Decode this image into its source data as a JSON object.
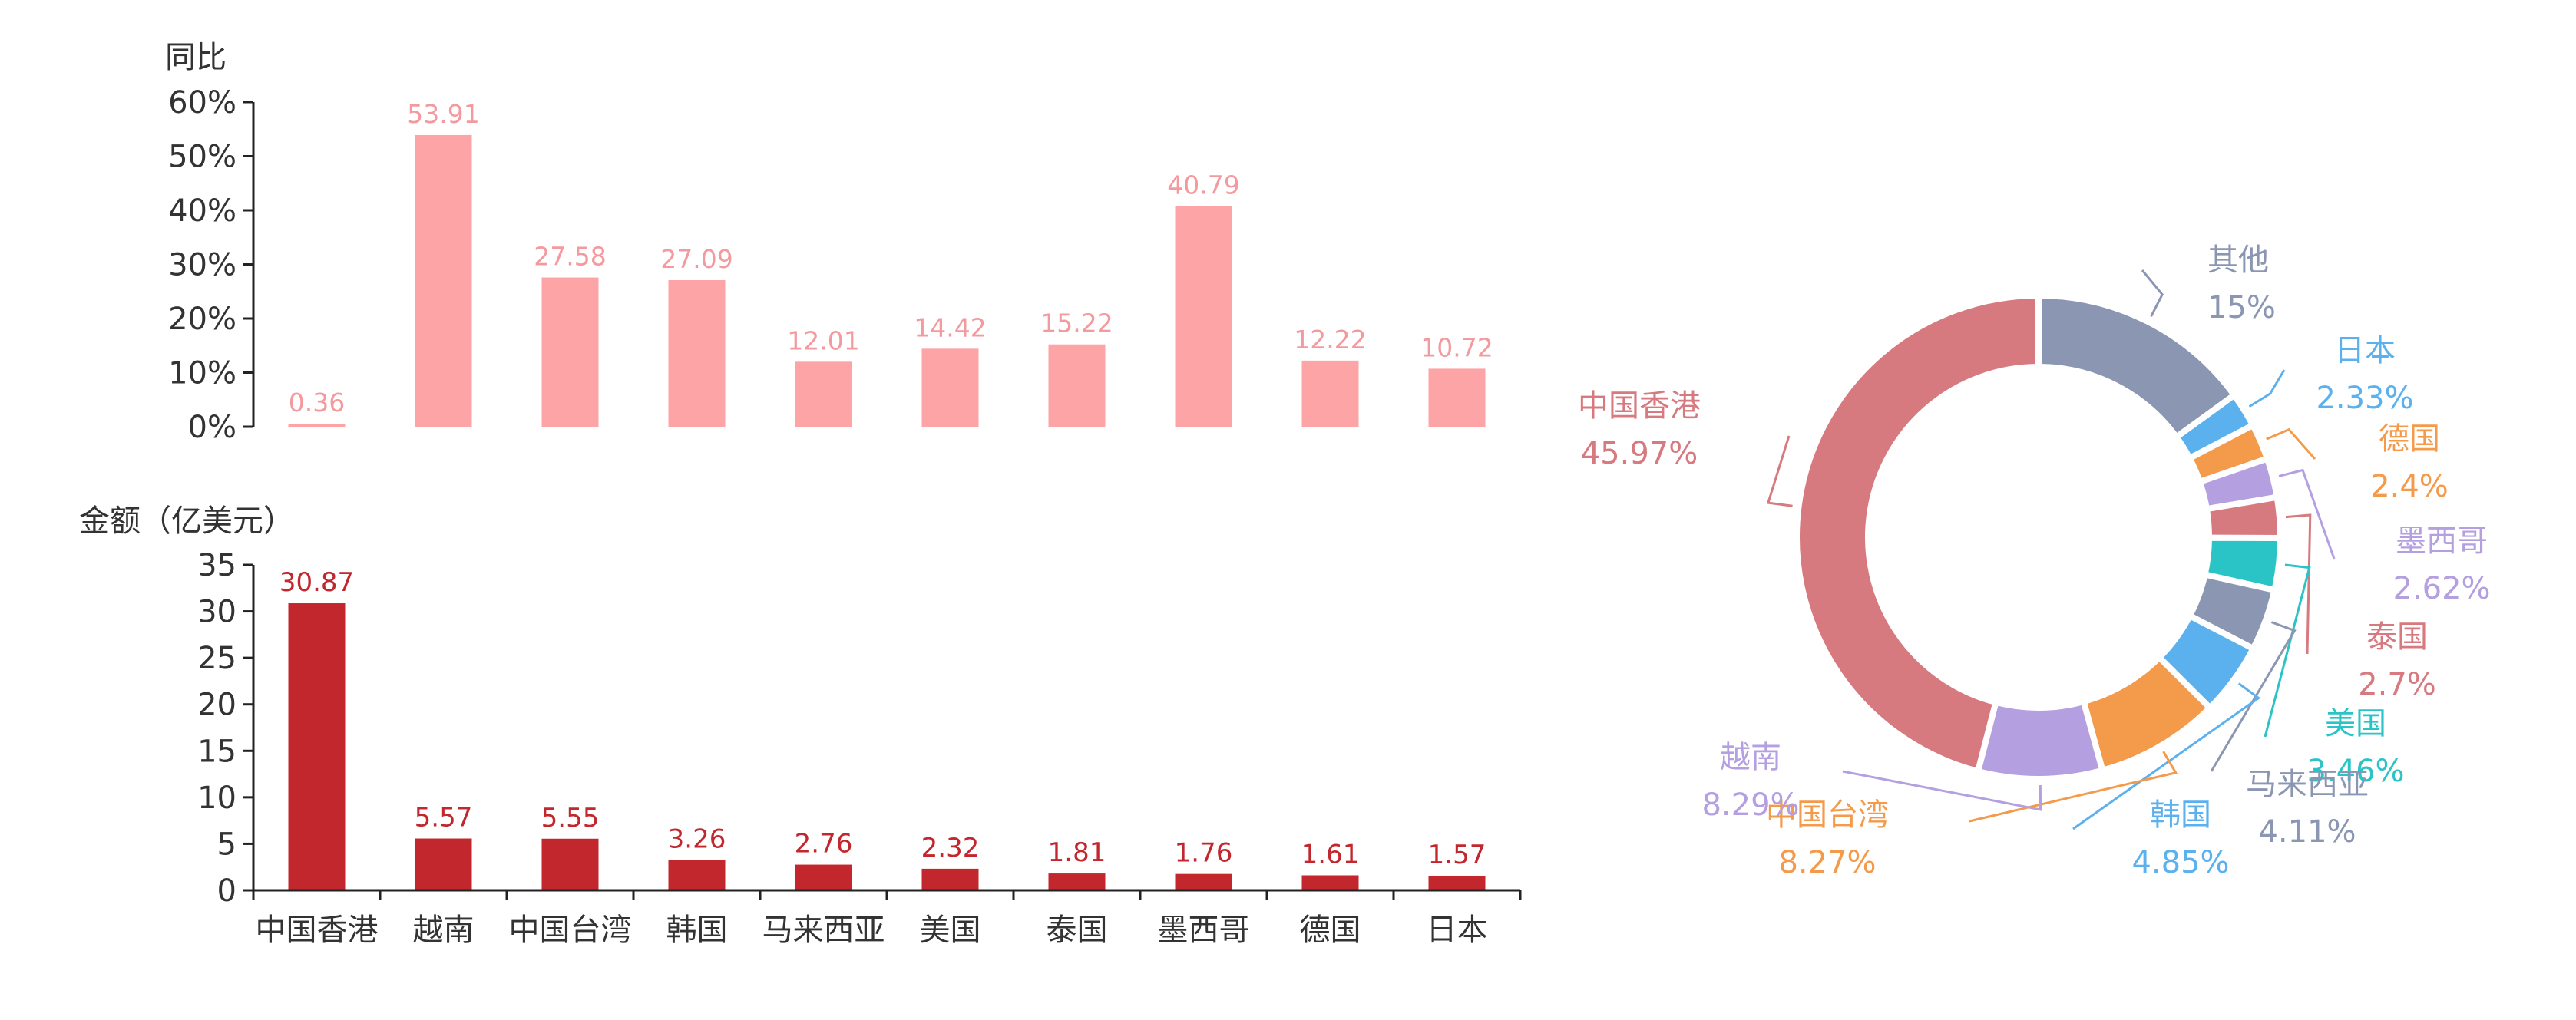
{
  "chart_data": [
    {
      "type": "bar",
      "ylabel": "同比",
      "ylim": [
        0,
        60
      ],
      "ytick_labels": [
        "0%",
        "10%",
        "20%",
        "30%",
        "40%",
        "50%",
        "60%"
      ],
      "categories": [
        "中国香港",
        "越南",
        "中国台湾",
        "韩国",
        "马来西亚",
        "美国",
        "泰国",
        "墨西哥",
        "德国",
        "日本"
      ],
      "values": [
        0.36,
        53.91,
        27.58,
        27.09,
        12.01,
        14.42,
        15.22,
        40.79,
        12.22,
        10.72
      ],
      "value_labels": [
        "0.36",
        "53.91",
        "27.58",
        "27.09",
        "12.01",
        "14.42",
        "15.22",
        "40.79",
        "12.22",
        "10.72"
      ],
      "color": "#fda4a6"
    },
    {
      "type": "bar",
      "ylabel": "金额（亿美元）",
      "ylim": [
        0,
        35
      ],
      "ytick_labels": [
        "0",
        "5",
        "10",
        "15",
        "20",
        "25",
        "30",
        "35"
      ],
      "categories": [
        "中国香港",
        "越南",
        "中国台湾",
        "韩国",
        "马来西亚",
        "美国",
        "泰国",
        "墨西哥",
        "德国",
        "日本"
      ],
      "values": [
        30.87,
        5.57,
        5.55,
        3.26,
        2.76,
        2.32,
        1.81,
        1.76,
        1.61,
        1.57
      ],
      "value_labels": [
        "30.87",
        "5.57",
        "5.55",
        "3.26",
        "2.76",
        "2.32",
        "1.81",
        "1.76",
        "1.61",
        "1.57"
      ],
      "color": "#c1272d"
    },
    {
      "type": "pie",
      "donut": true,
      "slices": [
        {
          "name": "其他",
          "value": 15,
          "label": "15%",
          "color": "#8b96b2"
        },
        {
          "name": "日本",
          "value": 2.33,
          "label": "2.33%",
          "color": "#5bb1ee"
        },
        {
          "name": "德国",
          "value": 2.4,
          "label": "2.4%",
          "color": "#f39a4b"
        },
        {
          "name": "墨西哥",
          "value": 2.62,
          "label": "2.62%",
          "color": "#b49fe0"
        },
        {
          "name": "泰国",
          "value": 2.7,
          "label": "2.7%",
          "color": "#d77a80"
        },
        {
          "name": "美国",
          "value": 3.46,
          "label": "3.46%",
          "color": "#2ac4c7"
        },
        {
          "name": "马来西亚",
          "value": 4.11,
          "label": "4.11%",
          "color": "#8b96b2"
        },
        {
          "name": "韩国",
          "value": 4.85,
          "label": "4.85%",
          "color": "#5bb1ee"
        },
        {
          "name": "中国台湾",
          "value": 8.27,
          "label": "8.27%",
          "color": "#f39a4b"
        },
        {
          "name": "越南",
          "value": 8.29,
          "label": "8.29%",
          "color": "#b49fe0"
        },
        {
          "name": "中国香港",
          "value": 45.97,
          "label": "45.97%",
          "color": "#d77a80"
        }
      ]
    }
  ]
}
